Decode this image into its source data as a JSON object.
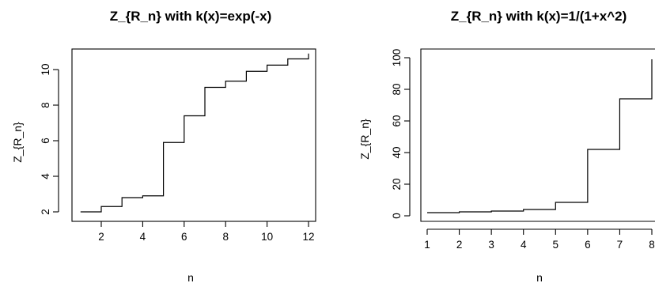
{
  "chart_data": [
    {
      "type": "line",
      "style": "step",
      "title": "Z_{R_n} with k(x)=exp(-x)",
      "xlabel": "n",
      "ylabel": "Z_{R_n}",
      "xlim": [
        1,
        12
      ],
      "ylim": [
        2,
        11
      ],
      "xticks": [
        2,
        4,
        6,
        8,
        10,
        12
      ],
      "yticks": [
        2,
        4,
        6,
        8,
        10
      ],
      "x": [
        1,
        2,
        3,
        4,
        5,
        6,
        7,
        8,
        9,
        10,
        11,
        12
      ],
      "y": [
        2.0,
        2.3,
        2.8,
        2.9,
        5.9,
        7.4,
        9.0,
        9.35,
        9.9,
        10.25,
        10.6,
        10.9
      ],
      "grid": false
    },
    {
      "type": "line",
      "style": "step",
      "title": "Z_{R_n} with k(x)=1/(1+x^2)",
      "xlabel": "n",
      "ylabel": "Z_{R_n}",
      "xlim": [
        1,
        8
      ],
      "ylim": [
        0,
        100
      ],
      "xticks": [
        1,
        2,
        3,
        4,
        5,
        6,
        7,
        8
      ],
      "yticks": [
        0,
        20,
        40,
        60,
        80,
        100
      ],
      "x": [
        1,
        2,
        3,
        4,
        5,
        6,
        7,
        8
      ],
      "y": [
        2.0,
        2.5,
        3.0,
        4.0,
        8.5,
        42,
        74,
        99
      ],
      "grid": false
    }
  ]
}
